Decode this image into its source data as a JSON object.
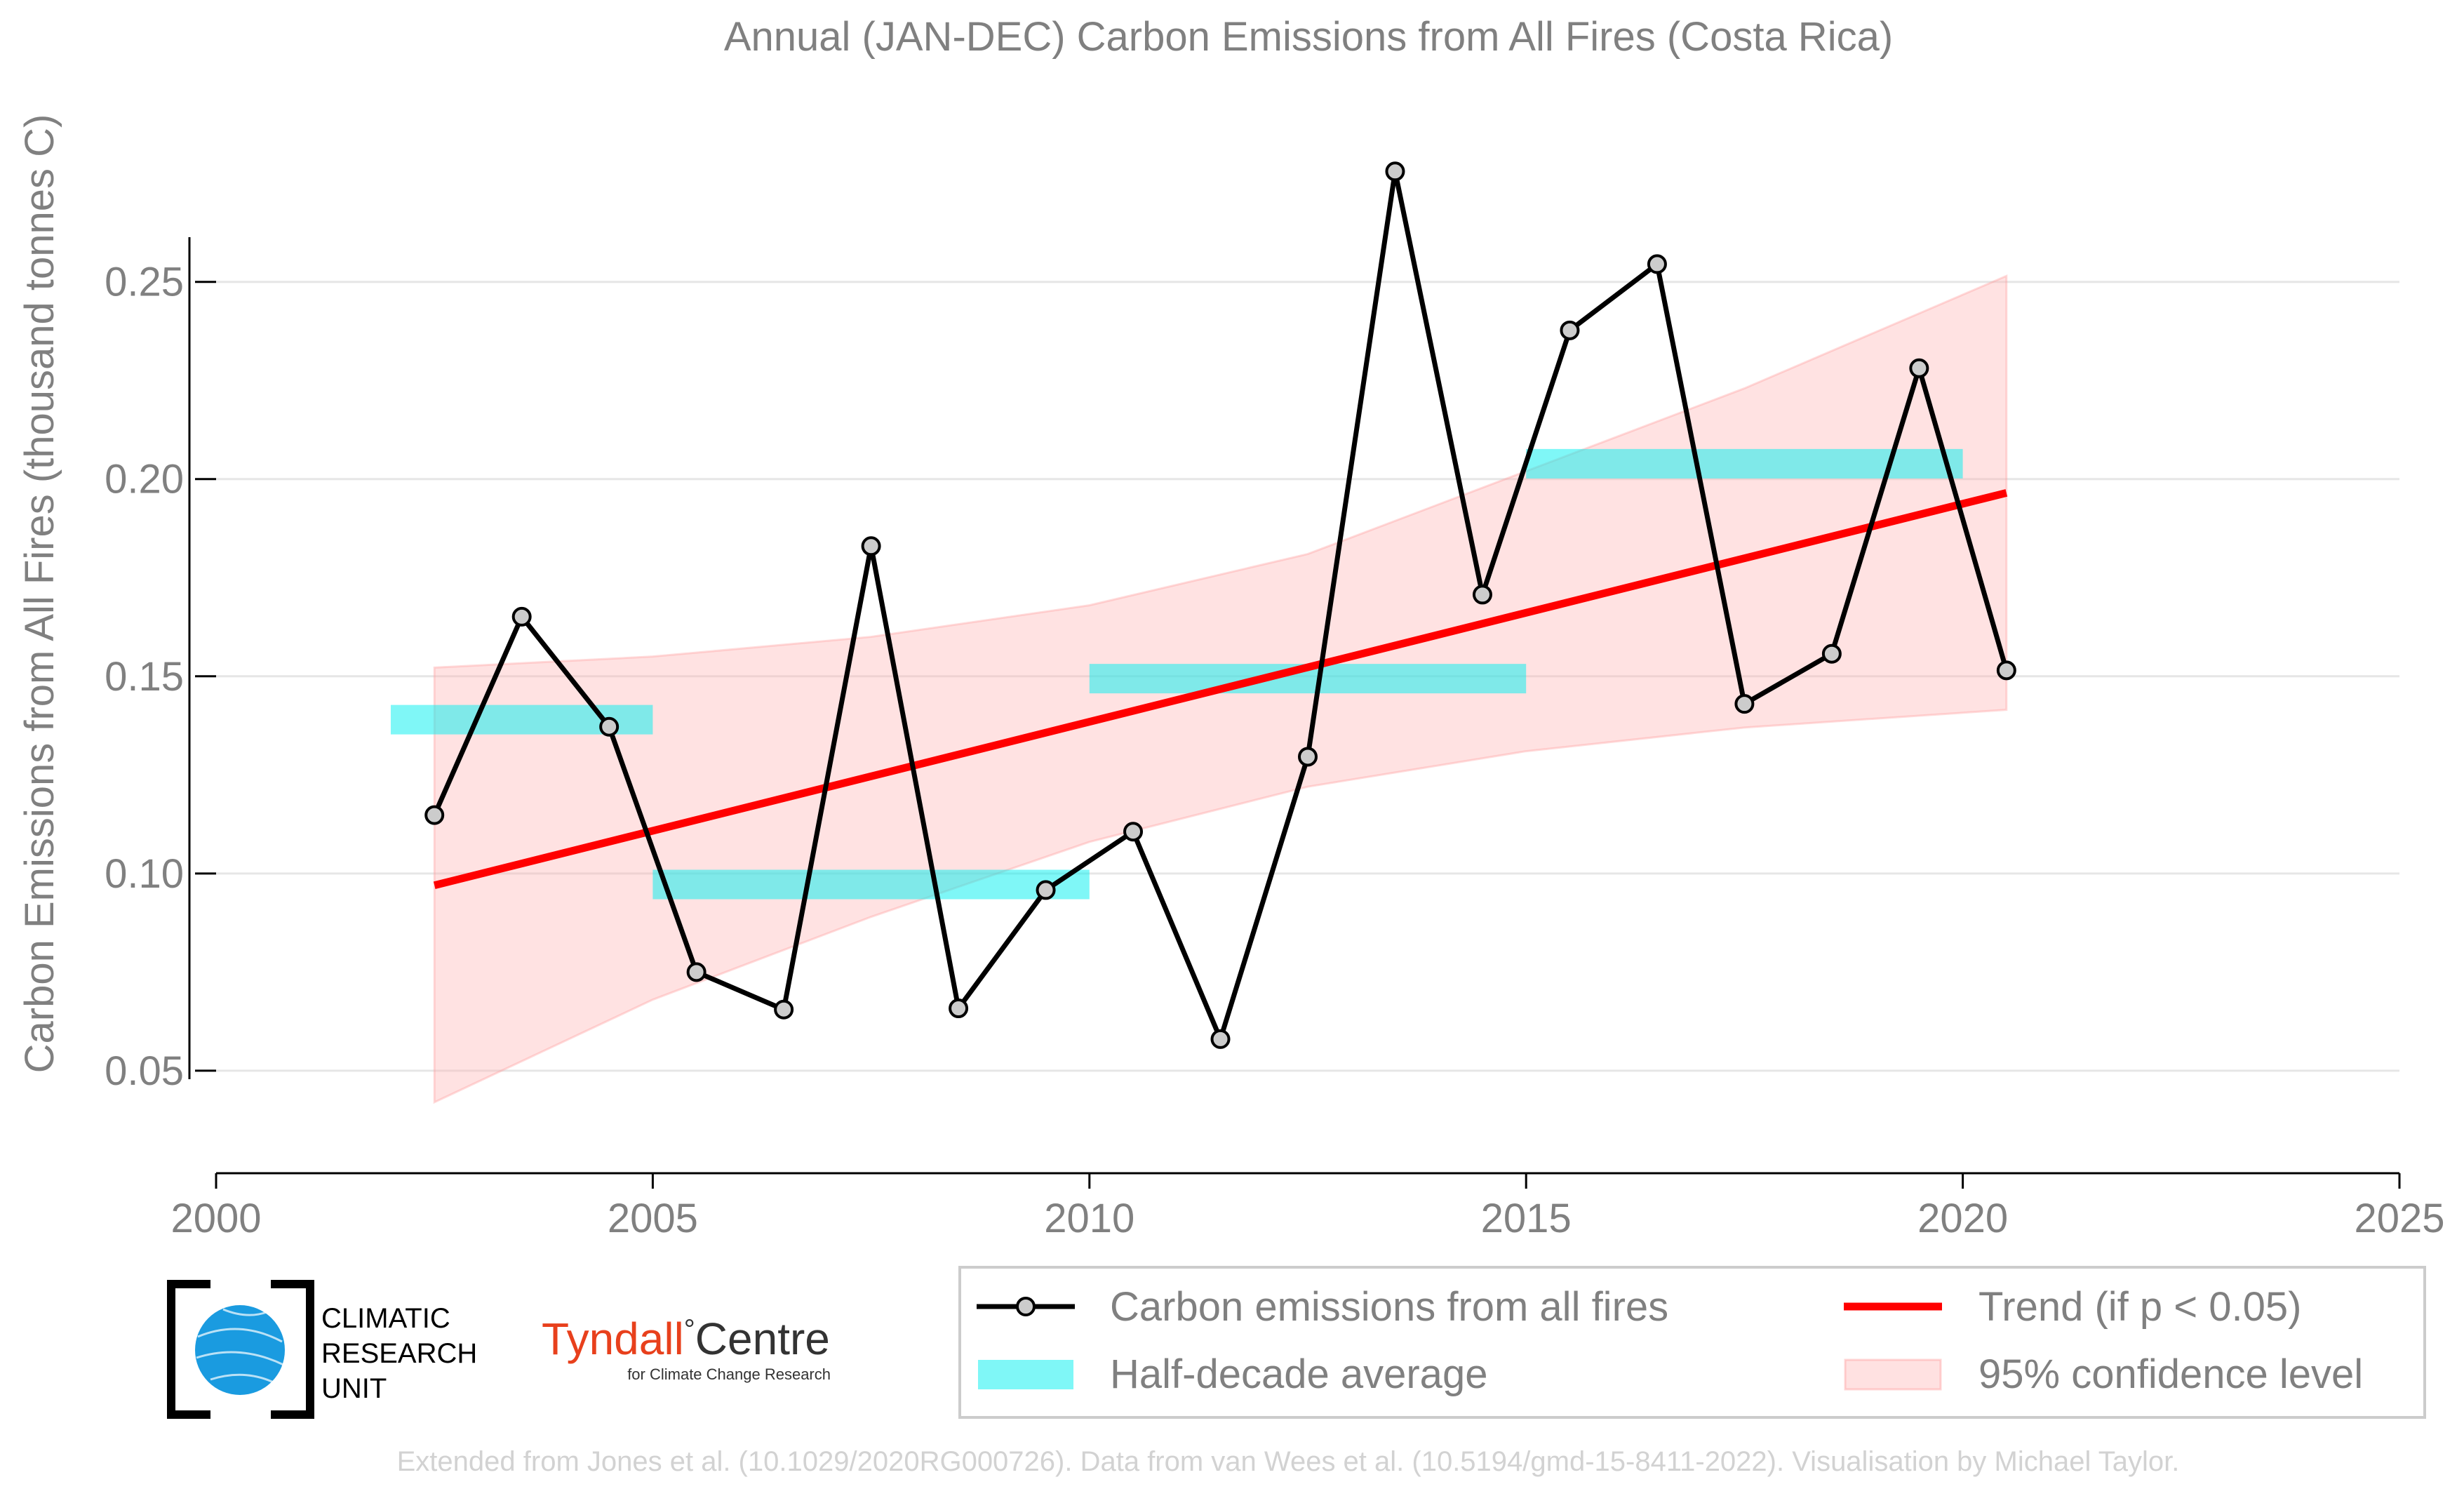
{
  "chart_data": {
    "type": "line",
    "title": "Annual (JAN-DEC) Carbon Emissions from All Fires (Costa Rica)",
    "xlabel": "",
    "ylabel": "Carbon Emissions from All Fires (thousand tonnes C)",
    "xlim": [
      2000,
      2025
    ],
    "ylim": [
      0.024,
      0.293
    ],
    "xticks": [
      2000,
      2005,
      2010,
      2015,
      2020,
      2025
    ],
    "yticks": [
      0.05,
      0.1,
      0.15,
      0.2,
      0.25
    ],
    "ytick_labels": [
      "0.05",
      "0.10",
      "0.15",
      "0.20",
      "0.25"
    ],
    "grid": "horizontal",
    "series": [
      {
        "name": "Carbon emissions from all fires",
        "color": "#000000",
        "marker_fill": "#cccccc",
        "x": [
          2002.5,
          2003.5,
          2004.5,
          2005.5,
          2006.5,
          2007.5,
          2008.5,
          2009.5,
          2010.5,
          2011.5,
          2012.5,
          2013.5,
          2014.5,
          2015.5,
          2016.5,
          2017.5,
          2018.5,
          2019.5,
          2020.5
        ],
        "y": [
          0.1148,
          0.1651,
          0.1372,
          0.075,
          0.0655,
          0.183,
          0.0658,
          0.0958,
          0.1106,
          0.058,
          0.1296,
          0.278,
          0.1707,
          0.2377,
          0.2545,
          0.143,
          0.1557,
          0.2281,
          0.1515
        ]
      }
    ],
    "half_decade_average": {
      "name": "Half-decade average",
      "color": "#00f0f0",
      "segments": [
        {
          "x0": 2002,
          "x1": 2005,
          "y": 0.139
        },
        {
          "x0": 2005,
          "x1": 2010,
          "y": 0.0972
        },
        {
          "x0": 2010,
          "x1": 2015,
          "y": 0.1494
        },
        {
          "x0": 2015,
          "x1": 2020,
          "y": 0.2039
        }
      ]
    },
    "trend": {
      "name": "Trend (if p < 0.05)",
      "color": "#ff0000",
      "x": [
        2002.5,
        2020.5
      ],
      "y": [
        0.097,
        0.1965
      ]
    },
    "confidence": {
      "name": "95% confidence level",
      "color": "#ffb3b3",
      "x": [
        2002.5,
        2005,
        2007.5,
        2010,
        2012.5,
        2015,
        2017.5,
        2020.5
      ],
      "upper": [
        0.1522,
        0.155,
        0.16,
        0.168,
        0.181,
        0.202,
        0.223,
        0.2515
      ],
      "lower": [
        0.042,
        0.068,
        0.089,
        0.108,
        0.122,
        0.131,
        0.137,
        0.1415
      ]
    },
    "legend": "bottom-right"
  },
  "logos": {
    "cru": [
      "CLIMATIC",
      "RESEARCH",
      "UNIT"
    ],
    "tyndall_main": "Tyndall",
    "tyndall_degree": "°",
    "tyndall_centre": "Centre",
    "tyndall_sub": "for Climate Change Research"
  },
  "credit": "Extended from Jones et al. (10.1029/2020RG000726). Data from van Wees et al. (10.5194/gmd-15-8411-2022). Visualisation by Michael Taylor."
}
